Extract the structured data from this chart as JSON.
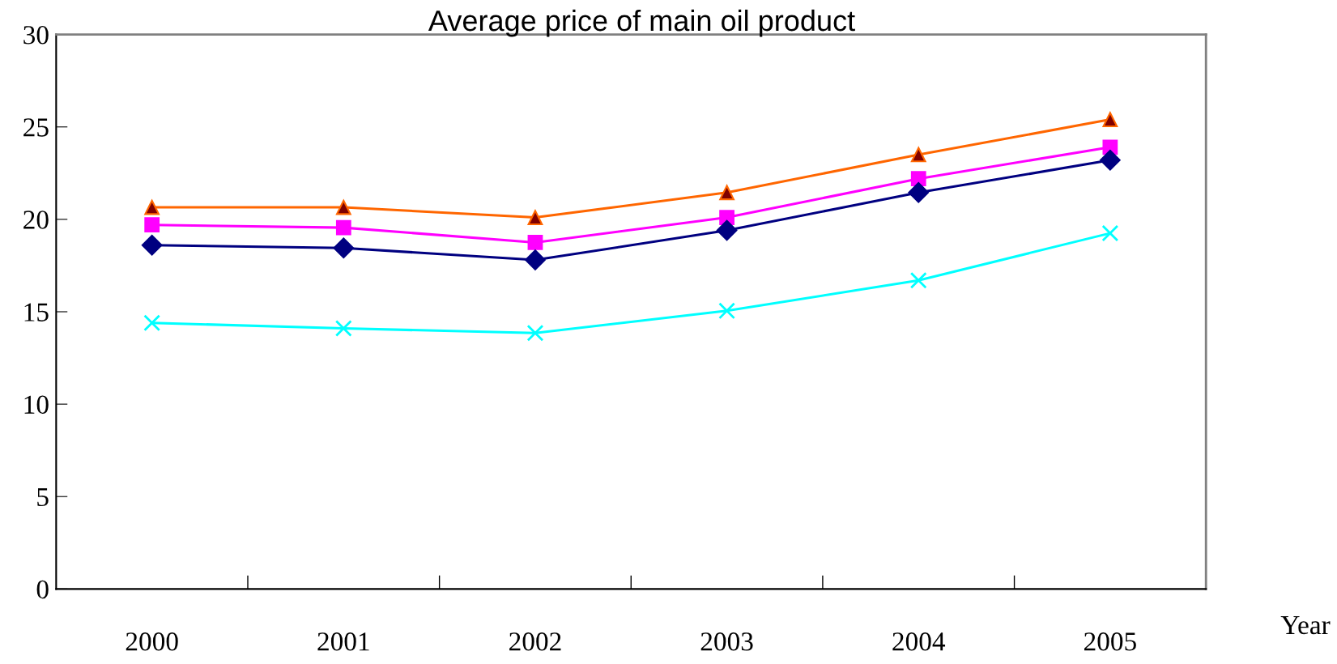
{
  "chart_data": {
    "type": "line",
    "title": "Average price of main oil product",
    "xlabel": "Year",
    "categories": [
      "2000",
      "2001",
      "2002",
      "2003",
      "2004",
      "2005"
    ],
    "series": [
      {
        "color": "#ff6600",
        "marker": "triangle",
        "values": [
          20.65,
          20.65,
          20.1,
          21.45,
          23.5,
          25.4
        ]
      },
      {
        "color": "#ff00ff",
        "marker": "square",
        "values": [
          19.7,
          19.55,
          18.75,
          20.1,
          22.2,
          23.9
        ]
      },
      {
        "color": "#000080",
        "marker": "diamond",
        "values": [
          18.6,
          18.45,
          17.8,
          19.4,
          21.45,
          23.2
        ]
      },
      {
        "color": "#00ffff",
        "marker": "cross",
        "values": [
          14.4,
          14.1,
          13.85,
          15.05,
          16.7,
          19.25
        ]
      }
    ],
    "ylim": [
      0,
      30
    ],
    "yticks": [
      0,
      5,
      10,
      15,
      20,
      25,
      30
    ],
    "grid": false,
    "legend": false
  }
}
